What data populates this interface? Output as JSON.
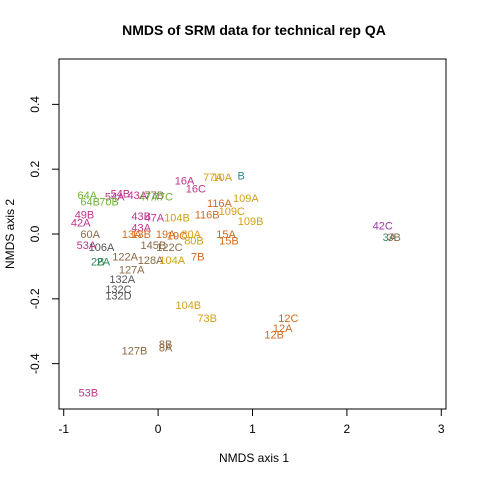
{
  "chart_data": {
    "type": "scatter",
    "title": "NMDS of SRM data for technical rep QA",
    "xlabel": "NMDS axis 1",
    "ylabel": "NMDS axis 2",
    "xlim": [
      -1.05,
      3.05
    ],
    "ylim": [
      -0.54,
      0.54
    ],
    "x_ticks": [
      -1,
      0,
      1,
      2,
      3
    ],
    "y_ticks": [
      -0.4,
      -0.2,
      0.0,
      0.2,
      0.4
    ],
    "x_tick_labels": [
      "-1",
      "0",
      "1",
      "2",
      "3"
    ],
    "y_tick_labels": [
      "-0.4",
      "-0.2",
      "0.0",
      "0.2",
      "0.4"
    ],
    "grid": false,
    "legend": "none",
    "marker": "text labels",
    "points": [
      {
        "label": "53B",
        "x": -0.74,
        "y": -0.49,
        "color": "#c0338f"
      },
      {
        "label": "8B",
        "x": 0.08,
        "y": -0.34,
        "color": "#8b6a45"
      },
      {
        "label": "8A",
        "x": 0.08,
        "y": -0.35,
        "color": "#8b6a45"
      },
      {
        "label": "127B",
        "x": -0.25,
        "y": -0.36,
        "color": "#8b6a45"
      },
      {
        "label": "104B",
        "x": 0.32,
        "y": -0.22,
        "color": "#d4a017"
      },
      {
        "label": "73B",
        "x": 0.52,
        "y": -0.26,
        "color": "#d4a017"
      },
      {
        "label": "12C",
        "x": 1.38,
        "y": -0.26,
        "color": "#d2691e"
      },
      {
        "label": "12A",
        "x": 1.32,
        "y": -0.29,
        "color": "#d2691e"
      },
      {
        "label": "12B",
        "x": 1.23,
        "y": -0.31,
        "color": "#d2691e"
      },
      {
        "label": "132A",
        "x": -0.38,
        "y": -0.14,
        "color": "#555555"
      },
      {
        "label": "132C",
        "x": -0.42,
        "y": -0.17,
        "color": "#555555"
      },
      {
        "label": "132D",
        "x": -0.42,
        "y": -0.19,
        "color": "#555555"
      },
      {
        "label": "42C",
        "x": 2.38,
        "y": 0.025,
        "color": "#a035b0"
      },
      {
        "label": "3A",
        "x": 2.45,
        "y": -0.01,
        "color": "#2e8b57"
      },
      {
        "label": "3B",
        "x": 2.5,
        "y": -0.01,
        "color": "#8b6a45"
      },
      {
        "label": "16A",
        "x": 0.28,
        "y": 0.165,
        "color": "#c0338f"
      },
      {
        "label": "16C",
        "x": 0.4,
        "y": 0.14,
        "color": "#c0338f"
      },
      {
        "label": "77A",
        "x": 0.58,
        "y": 0.175,
        "color": "#d4a017"
      },
      {
        "label": "10A",
        "x": 0.68,
        "y": 0.175,
        "color": "#d4a017"
      },
      {
        "label": "B",
        "x": 0.88,
        "y": 0.18,
        "color": "#2e8b8b"
      },
      {
        "label": "109A",
        "x": 0.93,
        "y": 0.11,
        "color": "#d4a017"
      },
      {
        "label": "116A",
        "x": 0.65,
        "y": 0.095,
        "color": "#d2691e"
      },
      {
        "label": "116B",
        "x": 0.52,
        "y": 0.06,
        "color": "#d2691e"
      },
      {
        "label": "109C",
        "x": 0.78,
        "y": 0.07,
        "color": "#d4a017"
      },
      {
        "label": "109B",
        "x": 0.98,
        "y": 0.04,
        "color": "#d4a017"
      },
      {
        "label": "15A",
        "x": 0.72,
        "y": 0.0,
        "color": "#d2691e"
      },
      {
        "label": "15B",
        "x": 0.75,
        "y": -0.02,
        "color": "#d2691e"
      },
      {
        "label": "7B",
        "x": 0.42,
        "y": -0.07,
        "color": "#d2691e"
      },
      {
        "label": "64A",
        "x": -0.75,
        "y": 0.12,
        "color": "#6bb536"
      },
      {
        "label": "64B",
        "x": -0.72,
        "y": 0.1,
        "color": "#6bb536"
      },
      {
        "label": "54B",
        "x": -0.4,
        "y": 0.125,
        "color": "#c0338f"
      },
      {
        "label": "54A",
        "x": -0.46,
        "y": 0.115,
        "color": "#c0338f"
      },
      {
        "label": "70B",
        "x": -0.52,
        "y": 0.1,
        "color": "#6bb536"
      },
      {
        "label": "49B",
        "x": -0.78,
        "y": 0.06,
        "color": "#c0338f"
      },
      {
        "label": "42A",
        "x": -0.82,
        "y": 0.035,
        "color": "#c0338f"
      },
      {
        "label": "53A",
        "x": -0.76,
        "y": -0.035,
        "color": "#c0338f"
      },
      {
        "label": "60A",
        "x": -0.72,
        "y": 0.0,
        "color": "#8b6a45"
      },
      {
        "label": "2B",
        "x": -0.64,
        "y": -0.085,
        "color": "#2e8b57"
      },
      {
        "label": "43A",
        "x": -0.22,
        "y": 0.12,
        "color": "#c0338f"
      },
      {
        "label": "47A",
        "x": -0.1,
        "y": 0.115,
        "color": "#6bb536"
      },
      {
        "label": "77B",
        "x": -0.04,
        "y": 0.12,
        "color": "#8b6a45"
      },
      {
        "label": "77C",
        "x": 0.05,
        "y": 0.115,
        "color": "#6bb536"
      },
      {
        "label": "43B",
        "x": -0.18,
        "y": 0.055,
        "color": "#c0338f"
      },
      {
        "label": "43A",
        "x": -0.18,
        "y": 0.02,
        "color": "#c0338f"
      },
      {
        "label": "47A",
        "x": -0.04,
        "y": 0.05,
        "color": "#c0338f"
      },
      {
        "label": "104B",
        "x": 0.2,
        "y": 0.05,
        "color": "#d4a017"
      },
      {
        "label": "13A",
        "x": -0.28,
        "y": 0.0,
        "color": "#d2691e"
      },
      {
        "label": "13B",
        "x": -0.18,
        "y": 0.0,
        "color": "#d2691e"
      },
      {
        "label": "19A",
        "x": 0.08,
        "y": 0.0,
        "color": "#d2691e"
      },
      {
        "label": "19C",
        "x": 0.2,
        "y": -0.005,
        "color": "#d2691e"
      },
      {
        "label": "80A",
        "x": 0.35,
        "y": 0.0,
        "color": "#d4a017"
      },
      {
        "label": "80B",
        "x": 0.38,
        "y": -0.02,
        "color": "#d4a017"
      },
      {
        "label": "122A",
        "x": -0.35,
        "y": -0.07,
        "color": "#8b6a45"
      },
      {
        "label": "127A",
        "x": -0.28,
        "y": -0.11,
        "color": "#8b6a45"
      },
      {
        "label": "128A",
        "x": -0.08,
        "y": -0.08,
        "color": "#8b6a45"
      },
      {
        "label": "104A",
        "x": 0.15,
        "y": -0.08,
        "color": "#d4a017"
      },
      {
        "label": "122C",
        "x": 0.12,
        "y": -0.04,
        "color": "#8b6a45"
      },
      {
        "label": "145B",
        "x": -0.05,
        "y": -0.035,
        "color": "#8b6a45"
      },
      {
        "label": "106A",
        "x": -0.6,
        "y": -0.04,
        "color": "#555555"
      },
      {
        "label": "2A",
        "x": -0.58,
        "y": -0.085,
        "color": "#2e8b57"
      }
    ]
  }
}
